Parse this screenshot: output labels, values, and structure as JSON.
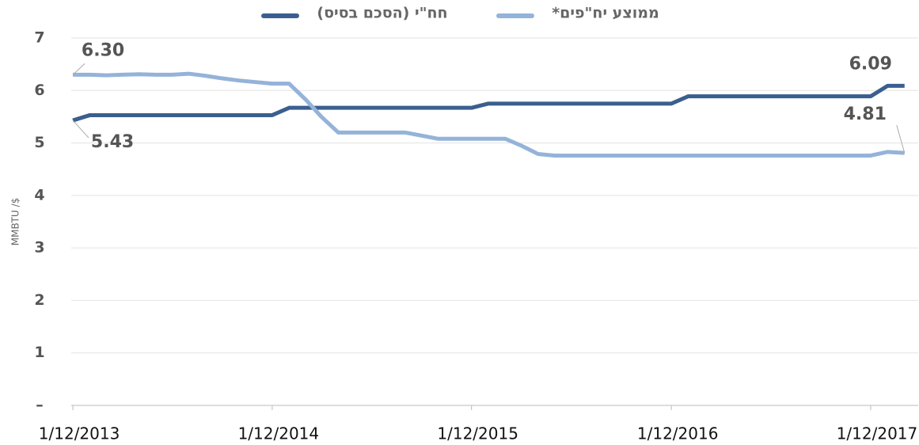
{
  "chart_data": {
    "type": "line",
    "y_label": "MMBTU /$",
    "x": [
      "2013-12-01",
      "2014-01-01",
      "2014-02-01",
      "2014-03-01",
      "2014-04-01",
      "2014-05-01",
      "2014-06-01",
      "2014-07-01",
      "2014-08-01",
      "2014-09-01",
      "2014-10-01",
      "2014-11-01",
      "2014-12-01",
      "2015-01-01",
      "2015-02-01",
      "2015-03-01",
      "2015-04-01",
      "2015-05-01",
      "2015-06-01",
      "2015-07-01",
      "2015-08-01",
      "2015-09-01",
      "2015-10-01",
      "2015-11-01",
      "2015-12-01",
      "2016-01-01",
      "2016-02-01",
      "2016-03-01",
      "2016-04-01",
      "2016-05-01",
      "2016-06-01",
      "2016-07-01",
      "2016-08-01",
      "2016-09-01",
      "2016-10-01",
      "2016-11-01",
      "2016-12-01",
      "2017-01-01",
      "2017-02-01",
      "2017-03-01",
      "2017-04-01",
      "2017-05-01",
      "2017-06-01",
      "2017-07-01",
      "2017-08-01",
      "2017-09-01",
      "2017-10-01",
      "2017-11-01",
      "2017-12-01",
      "2018-01-01",
      "2018-02-01"
    ],
    "series": [
      {
        "name": "חח\"י (הסכם בסיס)",
        "color": "#3a5f8f",
        "values": [
          5.43,
          5.53,
          5.53,
          5.53,
          5.53,
          5.53,
          5.53,
          5.53,
          5.53,
          5.53,
          5.53,
          5.53,
          5.53,
          5.67,
          5.67,
          5.67,
          5.67,
          5.67,
          5.67,
          5.67,
          5.67,
          5.67,
          5.67,
          5.67,
          5.67,
          5.75,
          5.75,
          5.75,
          5.75,
          5.75,
          5.75,
          5.75,
          5.75,
          5.75,
          5.75,
          5.75,
          5.75,
          5.89,
          5.89,
          5.89,
          5.89,
          5.89,
          5.89,
          5.89,
          5.89,
          5.89,
          5.89,
          5.89,
          5.89,
          6.09,
          6.09
        ],
        "value_labels": [
          "5.43",
          null,
          null,
          null,
          null,
          null,
          null,
          null,
          null,
          null,
          null,
          null,
          null,
          null,
          null,
          null,
          null,
          null,
          null,
          null,
          null,
          null,
          null,
          null,
          null,
          null,
          null,
          null,
          null,
          null,
          null,
          null,
          null,
          null,
          null,
          null,
          null,
          null,
          null,
          null,
          null,
          null,
          null,
          null,
          null,
          null,
          null,
          null,
          null,
          null,
          "6.09"
        ]
      },
      {
        "name": "ממוצע יח\"פים*",
        "color": "#94b3d9",
        "values": [
          6.3,
          6.3,
          6.29,
          6.3,
          6.31,
          6.3,
          6.3,
          6.32,
          6.28,
          6.23,
          6.19,
          6.16,
          6.13,
          6.13,
          5.82,
          5.5,
          5.2,
          5.2,
          5.2,
          5.2,
          5.2,
          5.14,
          5.08,
          5.08,
          5.08,
          5.08,
          5.08,
          4.95,
          4.79,
          4.76,
          4.76,
          4.76,
          4.76,
          4.76,
          4.76,
          4.76,
          4.76,
          4.76,
          4.76,
          4.76,
          4.76,
          4.76,
          4.76,
          4.76,
          4.76,
          4.76,
          4.76,
          4.76,
          4.76,
          4.83,
          4.81
        ],
        "value_labels": [
          "6.30",
          null,
          null,
          null,
          null,
          null,
          null,
          null,
          null,
          null,
          null,
          null,
          null,
          null,
          null,
          null,
          null,
          null,
          null,
          null,
          null,
          null,
          null,
          null,
          null,
          null,
          null,
          null,
          null,
          null,
          null,
          null,
          null,
          null,
          null,
          null,
          null,
          null,
          null,
          null,
          null,
          null,
          null,
          null,
          null,
          null,
          null,
          null,
          null,
          null,
          "4.81"
        ]
      }
    ],
    "xlim": [
      "2013-11-28",
      "2018-02-26"
    ],
    "xticks": [
      {
        "value": "2013-12-01",
        "label": "1/12/2013"
      },
      {
        "value": "2014-12-01",
        "label": "1/12/2014"
      },
      {
        "value": "2015-12-01",
        "label": "1/12/2015"
      },
      {
        "value": "2016-12-01",
        "label": "1/12/2016"
      },
      {
        "value": "2017-12-01",
        "label": "1/12/2017"
      }
    ],
    "ylim": [
      0,
      7
    ],
    "yticks": [
      {
        "value": 0,
        "label": "–"
      },
      1,
      2,
      3,
      4,
      5,
      6,
      7
    ],
    "grid": true,
    "legend": "top"
  }
}
